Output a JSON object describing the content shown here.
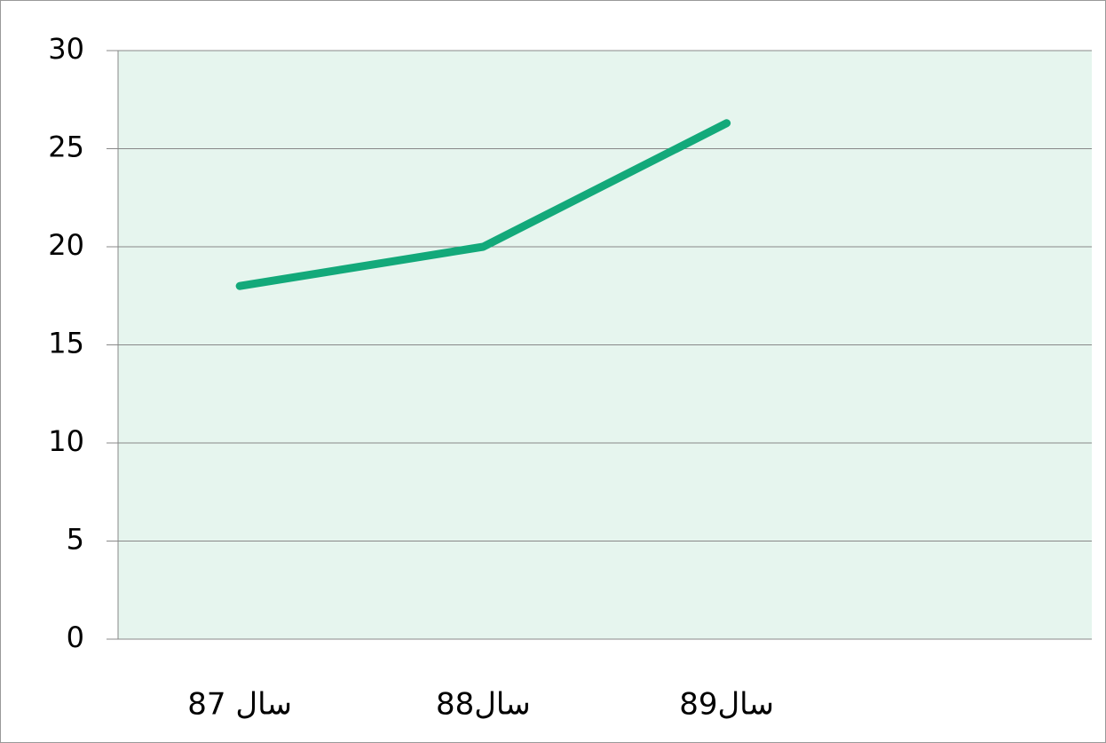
{
  "chart_data": {
    "type": "line",
    "categories": [
      "87 سال",
      "88سال",
      "89سال",
      null
    ],
    "series": [
      {
        "name": null,
        "color": "#13a97a",
        "values": [
          18,
          20,
          26.3,
          null
        ]
      }
    ],
    "ylim": [
      0,
      30
    ],
    "yticks": [
      0,
      5,
      10,
      15,
      20,
      25,
      30
    ],
    "grid": true,
    "plot_background": "#e6f5ee"
  }
}
